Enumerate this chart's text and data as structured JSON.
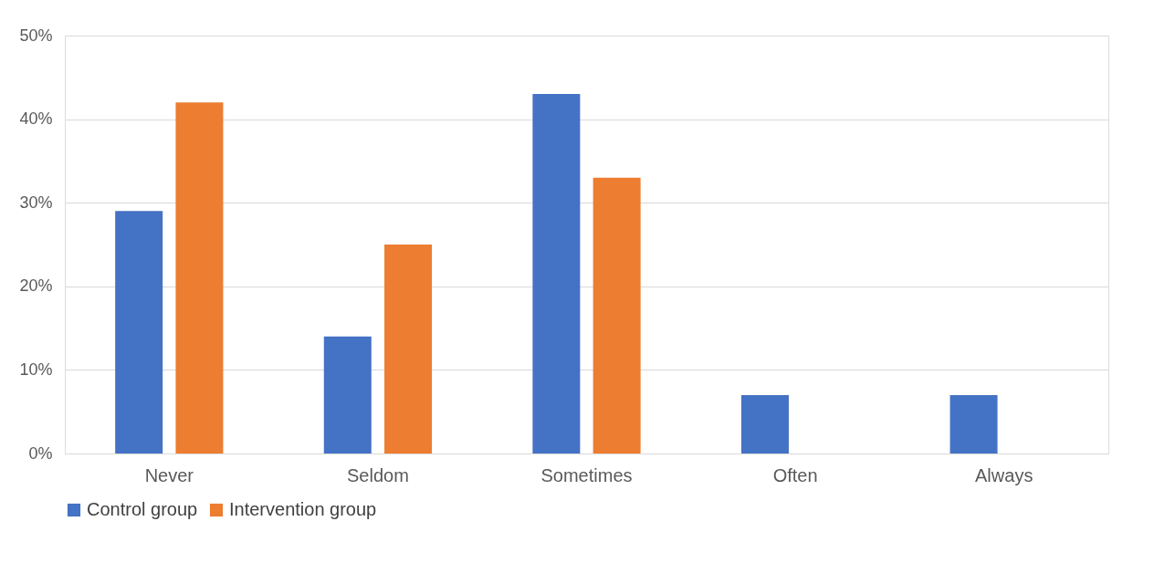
{
  "chart_data": {
    "type": "bar",
    "categories": [
      "Never",
      "Seldom",
      "Sometimes",
      "Often",
      "Always"
    ],
    "series": [
      {
        "name": "Control group",
        "color": "#4472c4",
        "values": [
          29,
          14,
          43,
          7,
          7
        ]
      },
      {
        "name": "Intervention group",
        "color": "#ed7d31",
        "values": [
          42,
          25,
          33,
          0,
          0
        ]
      }
    ],
    "ylim": [
      0,
      50
    ],
    "yticks": [
      {
        "value": 0,
        "label": "0%"
      },
      {
        "value": 10,
        "label": "10%"
      },
      {
        "value": 20,
        "label": "20%"
      },
      {
        "value": 30,
        "label": "30%"
      },
      {
        "value": 40,
        "label": "40%"
      },
      {
        "value": 50,
        "label": "50%"
      }
    ],
    "grid": "y",
    "legend": "bottom"
  }
}
